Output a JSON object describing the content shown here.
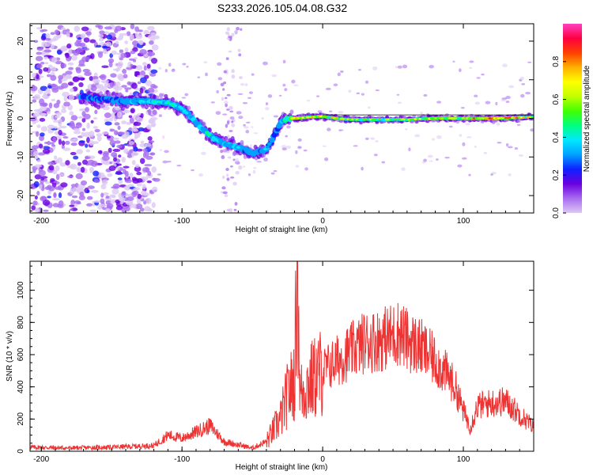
{
  "figure": {
    "title": "S233.2026.105.04.08.G32"
  },
  "chart_data": [
    {
      "type": "heatmap",
      "xlabel": "Height of straight line (km)",
      "ylabel": "Frequency (Hz)",
      "xlim": [
        -208,
        150
      ],
      "ylim": [
        -24.5,
        24.5
      ],
      "xticks": [
        -200,
        -100,
        0,
        100
      ],
      "yticks": [
        -20,
        -10,
        0,
        10,
        20
      ],
      "colorbar": {
        "label": "Normalized spectral amplitude",
        "range": [
          0,
          1
        ],
        "ticks": [
          "0.0",
          "0.2",
          "0.4",
          "0.6",
          "0.8"
        ],
        "tick_values": [
          0,
          0.2,
          0.4,
          0.6,
          0.8
        ],
        "colors": [
          "#dcc8f4",
          "#a86cf0",
          "#6a00e0",
          "#1020ff",
          "#00a0ff",
          "#00e8ff",
          "#00ff80",
          "#40ff00",
          "#c0ff00",
          "#ffff00",
          "#ffb000",
          "#ff4000",
          "#ff0040",
          "#ff40c0"
        ]
      },
      "ridge": {
        "x": [
          -170,
          -160,
          -150,
          -140,
          -130,
          -120,
          -110,
          -100,
          -90,
          -80,
          -70,
          -60,
          -50,
          -40,
          -35,
          -30,
          -25,
          -20,
          -10,
          0,
          10,
          20,
          40,
          60,
          80,
          100,
          120,
          140,
          150
        ],
        "y": [
          5.5,
          5.0,
          4.8,
          4.5,
          4.5,
          4.3,
          4.0,
          2.5,
          -1.0,
          -4.5,
          -6.5,
          -7.5,
          -9.0,
          -8.0,
          -5.0,
          -1.0,
          0.0,
          0.0,
          0.3,
          0.5,
          0.0,
          -0.3,
          -0.3,
          -0.3,
          0.0,
          0.0,
          0.0,
          0.2,
          0.3
        ],
        "amplitude": [
          0.25,
          0.25,
          0.28,
          0.32,
          0.38,
          0.42,
          0.45,
          0.42,
          0.4,
          0.42,
          0.38,
          0.4,
          0.32,
          0.38,
          0.3,
          0.28,
          0.6,
          0.85,
          0.7,
          0.8,
          0.75,
          0.6,
          0.55,
          0.65,
          0.8,
          0.7,
          0.95,
          0.85,
          0.7
        ]
      }
    },
    {
      "type": "line",
      "xlabel": "Height of straight line (km)",
      "ylabel": "SNR (10 * v/v)",
      "xlim": [
        -208,
        150
      ],
      "ylim": [
        0,
        1180
      ],
      "xticks": [
        -200,
        -100,
        0,
        100
      ],
      "yticks": [
        0,
        200,
        400,
        600,
        800,
        1000
      ],
      "line_color": "#ee3333",
      "series": [
        {
          "x": [
            -208,
            -180,
            -150,
            -120,
            -110,
            -100,
            -90,
            -80,
            -70,
            -60,
            -50,
            -40,
            -30,
            -25,
            -20,
            -18,
            -16,
            -10,
            0,
            10,
            20,
            30,
            40,
            50,
            55,
            60,
            70,
            80,
            90,
            95,
            100,
            105,
            110,
            120,
            130,
            140,
            150
          ],
          "y": [
            25,
            20,
            25,
            35,
            100,
            80,
            120,
            160,
            60,
            40,
            20,
            60,
            200,
            350,
            450,
            1180,
            350,
            420,
            500,
            560,
            620,
            680,
            690,
            720,
            740,
            690,
            640,
            560,
            460,
            380,
            250,
            150,
            280,
            300,
            310,
            230,
            150
          ]
        }
      ]
    }
  ]
}
